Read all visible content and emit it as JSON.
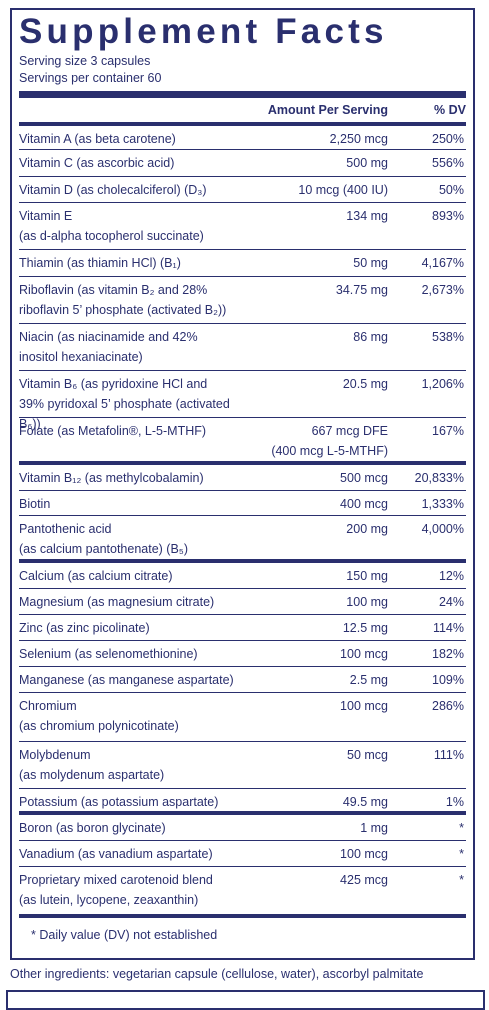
{
  "title": "Supplement Facts",
  "serving_size": "Serving size  3 capsules",
  "servings_per_container": "Servings per container  60",
  "header": {
    "amount": "Amount Per Serving",
    "dv": "% DV"
  },
  "rows": [
    {
      "name": "Vitamin A (as beta carotene)",
      "amount": "2,250 mcg",
      "dv": "250%",
      "h": 24
    },
    {
      "name": "Vitamin C (as ascorbic acid)",
      "amount": "500 mg",
      "dv": "556%",
      "h": 27
    },
    {
      "name": "Vitamin D (as cholecalciferol) (D₃)",
      "amount": "10 mcg (400 IU)",
      "dv": "50%",
      "h": 26
    },
    {
      "name": "Vitamin E\n(as d-alpha tocopherol succinate)",
      "amount": "134 mg",
      "dv": "893%",
      "h": 47
    },
    {
      "name": "Thiamin (as thiamin HCl) (B₁)",
      "amount": "50 mg",
      "dv": "4,167%",
      "h": 27
    },
    {
      "name": "Riboflavin (as vitamin B₂ and 28%\nriboflavin 5’ phosphate (activated B₂))",
      "amount": "34.75 mg",
      "dv": "2,673%",
      "h": 47
    },
    {
      "name": "Niacin (as niacinamide and 42%\ninositol hexaniacinate)",
      "amount": "86 mg",
      "dv": "538%",
      "h": 47
    },
    {
      "name": "Vitamin B₆ (as pyridoxine HCl and\n39% pyridoxal 5’ phosphate (activated B₆))",
      "amount": "20.5 mg",
      "dv": "1,206%",
      "h": 47
    },
    {
      "name": "Folate (as Metafolin®, L-5-MTHF)",
      "amount": "667 mcg DFE\n(400 mcg L-5-MTHF)",
      "dv": "167%",
      "h": 47,
      "heavy": true
    },
    {
      "name": "Vitamin B₁₂ (as methylcobalamin)",
      "amount": "500 mcg",
      "dv": "20,833%",
      "h": 26
    },
    {
      "name": "Biotin",
      "amount": "400 mcg",
      "dv": "1,333%",
      "h": 25
    },
    {
      "name": "Pantothenic acid\n(as calcium pantothenate) (B₅)",
      "amount": "200 mg",
      "dv": "4,000%",
      "h": 47,
      "heavy": true
    },
    {
      "name": "Calcium (as calcium citrate)",
      "amount": "150 mg",
      "dv": "12%",
      "h": 26
    },
    {
      "name": "Magnesium (as magnesium citrate)",
      "amount": "100 mg",
      "dv": "24%",
      "h": 26
    },
    {
      "name": "Zinc (as zinc picolinate)",
      "amount": "12.5 mg",
      "dv": "114%",
      "h": 26
    },
    {
      "name": "Selenium (as selenomethionine)",
      "amount": "100 mcg",
      "dv": "182%",
      "h": 26
    },
    {
      "name": "Manganese (as manganese aspartate)",
      "amount": "2.5 mg",
      "dv": "109%",
      "h": 26
    },
    {
      "name": "Chromium\n(as chromium polynicotinate)",
      "amount": "100 mcg",
      "dv": "286%",
      "h": 49
    },
    {
      "name": "Molybdenum\n(as molydenum aspartate)",
      "amount": "50 mcg",
      "dv": "111%",
      "h": 47
    },
    {
      "name": "Potassium (as potassium aspartate)",
      "amount": "49.5 mg",
      "dv": "1%",
      "h": 26,
      "heavy": true
    },
    {
      "name": "Boron (as boron glycinate)",
      "amount": "1 mg",
      "dv": "*",
      "h": 26
    },
    {
      "name": "Vanadium (as vanadium aspartate)",
      "amount": "100 mcg",
      "dv": "*",
      "h": 26
    },
    {
      "name": "Proprietary mixed carotenoid blend\n(as lutein, lycopene, zeaxanthin)",
      "amount": "425 mcg",
      "dv": "*",
      "h": 51,
      "last": true
    }
  ],
  "footnote": "*  Daily value (DV) not established",
  "other_ingredients": "Other ingredients: vegetarian capsule (cellulose, water), ascorbyl palmitate"
}
